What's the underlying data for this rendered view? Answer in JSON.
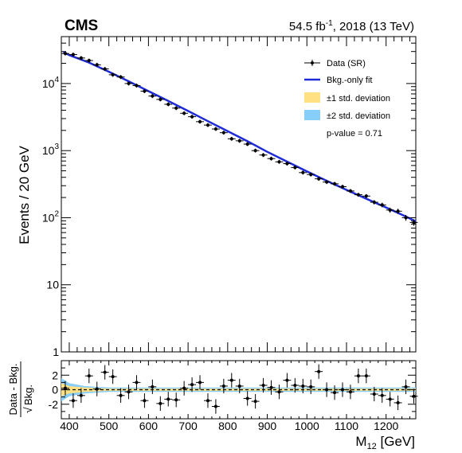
{
  "header": {
    "experiment": "CMS",
    "lumi_prefix": "54.5 fb",
    "lumi_exp": "-1",
    "lumi_suffix": ", 2018 (13 TeV)"
  },
  "legend": {
    "data_label": "Data (SR)",
    "fit_label": "Bkg.-only fit",
    "one_sigma_label": "±1 std. deviation",
    "two_sigma_label": "±2 std. deviation",
    "pvalue_label": "p-value = 0.71"
  },
  "colors": {
    "fit_line": "#1f2bd6",
    "one_sigma": "#ffe082",
    "two_sigma": "#87cefa",
    "data": "#000000"
  },
  "chart_data": [
    {
      "type": "scatter",
      "panel": "main",
      "ylabel": "Events / 20 GeV",
      "ylabel_parts": {
        "base": "Events / 20 GeV"
      },
      "yscale": "log",
      "ylim": [
        1,
        50000
      ],
      "xlim": [
        380,
        1275
      ],
      "ytick_labels": [
        {
          "value": 1,
          "base": "1",
          "exp": ""
        },
        {
          "value": 10,
          "base": "10",
          "exp": ""
        },
        {
          "value": 100,
          "base": "10",
          "exp": "2"
        },
        {
          "value": 1000,
          "base": "10",
          "exp": "3"
        },
        {
          "value": 10000,
          "base": "10",
          "exp": "4"
        }
      ],
      "series": [
        {
          "name": "Data (SR)",
          "x": [
            390,
            410,
            430,
            450,
            470,
            490,
            510,
            530,
            550,
            570,
            590,
            610,
            630,
            650,
            670,
            690,
            710,
            730,
            750,
            770,
            790,
            810,
            830,
            850,
            870,
            890,
            910,
            930,
            950,
            970,
            990,
            1010,
            1030,
            1050,
            1070,
            1090,
            1110,
            1130,
            1150,
            1170,
            1190,
            1210,
            1230,
            1250,
            1270
          ],
          "y": [
            28000,
            27000,
            24000,
            22000,
            19000,
            16500,
            13500,
            12500,
            10000,
            9300,
            7700,
            6500,
            5800,
            4900,
            4300,
            3600,
            3200,
            2700,
            2400,
            2100,
            1850,
            1500,
            1400,
            1250,
            1000,
            860,
            760,
            680,
            640,
            560,
            470,
            440,
            380,
            340,
            320,
            290,
            250,
            220,
            210,
            170,
            155,
            130,
            125,
            100,
            85
          ]
        },
        {
          "name": "Bkg.-only fit",
          "x": [
            385,
            400,
            450,
            500,
            550,
            600,
            650,
            700,
            750,
            800,
            850,
            900,
            950,
            1000,
            1050,
            1100,
            1150,
            1200,
            1250,
            1275
          ],
          "y": [
            29500,
            26500,
            20500,
            15000,
            10800,
            7700,
            5500,
            3900,
            2750,
            1950,
            1380,
            960,
            685,
            490,
            355,
            260,
            192,
            142,
            104,
            88
          ]
        }
      ]
    },
    {
      "type": "scatter",
      "panel": "ratio",
      "ylabel": "Data - Bkg. / √Bkg.",
      "ylabel_parts": {
        "numerator": "Data - Bkg.",
        "denominator": "Bkg."
      },
      "xlabel": "M",
      "xlabel_parts": {
        "base": "M",
        "sub": "12",
        "unit": " [GeV]"
      },
      "xlim": [
        380,
        1275
      ],
      "ylim": [
        -4,
        4
      ],
      "xticks": [
        400,
        500,
        600,
        700,
        800,
        900,
        1000,
        1100,
        1200
      ],
      "yticks": [
        -2,
        0,
        2
      ],
      "series": [
        {
          "name": "Data (SR)",
          "x": [
            390,
            410,
            430,
            450,
            470,
            490,
            510,
            530,
            550,
            570,
            590,
            610,
            630,
            650,
            670,
            690,
            710,
            730,
            750,
            770,
            790,
            810,
            830,
            850,
            870,
            890,
            910,
            930,
            950,
            970,
            990,
            1010,
            1030,
            1050,
            1070,
            1090,
            1110,
            1130,
            1150,
            1170,
            1190,
            1210,
            1230,
            1250,
            1270
          ],
          "y": [
            0.2,
            -1.5,
            -0.8,
            1.9,
            0.1,
            2.4,
            1.8,
            -0.8,
            -0.3,
            1.0,
            -1.5,
            0.4,
            -1.9,
            -1.3,
            -1.4,
            0.2,
            0.7,
            1.0,
            -1.5,
            -2.3,
            0.5,
            1.3,
            0.5,
            -1.2,
            -1.6,
            0.6,
            0.3,
            -0.3,
            1.3,
            0.6,
            0.5,
            0.4,
            2.5,
            0.0,
            -0.4,
            0.0,
            -0.3,
            1.9,
            1.9,
            -0.6,
            -0.8,
            -1.3,
            -1.8,
            0.4,
            -0.9
          ]
        },
        {
          "name": "±1 std. deviation",
          "x": [
            380,
            400,
            440,
            500,
            1275
          ],
          "y_lo": [
            -0.9,
            -0.5,
            -0.3,
            -0.15,
            -0.15
          ],
          "y_hi": [
            0.9,
            0.5,
            0.3,
            0.15,
            0.15
          ]
        },
        {
          "name": "±2 std. deviation",
          "x": [
            380,
            400,
            440,
            500,
            1275
          ],
          "y_lo": [
            -1.6,
            -0.9,
            -0.5,
            -0.3,
            -0.3
          ],
          "y_hi": [
            1.6,
            0.9,
            0.5,
            0.3,
            0.3
          ]
        }
      ]
    }
  ]
}
